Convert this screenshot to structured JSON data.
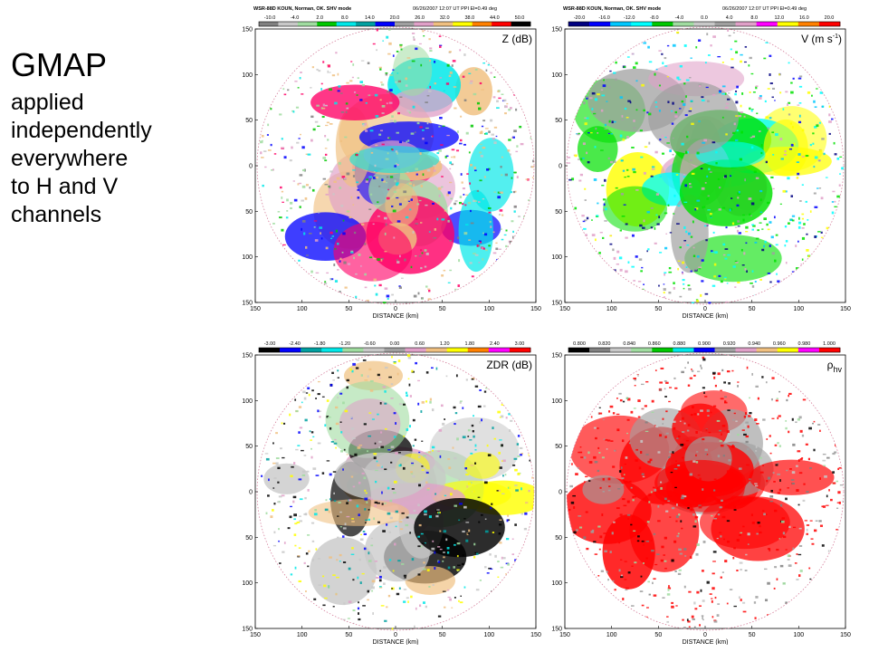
{
  "slide": {
    "title": "GMAP",
    "lines": [
      "applied",
      "independently",
      "everywhere",
      "to H and V",
      "channels"
    ]
  },
  "panels": [
    {
      "header_left": "WSR-88D  KOUN, Norman, OK.  SHV mode",
      "header_right": "06/26/2007  12:07 UT  PPI   El=0.49 deg",
      "colorbar_labels": [
        "-10.0",
        "-4.0",
        "2.0",
        "8.0",
        "14.0",
        "20.0",
        "26.0",
        "32.0",
        "38.0",
        "44.0",
        "50.0"
      ],
      "colorbar_colors": [
        "#808080",
        "#c8c8c8",
        "#a0dca0",
        "#00c800",
        "#00e8e8",
        "#00a0a0",
        "#0000ff",
        "#a0a0a0",
        "#e0a0c8",
        "#f0c080",
        "#ffff00",
        "#ff8000",
        "#ff0000",
        "#000000"
      ],
      "field_label": "Z  (dB)",
      "xlabel": "DISTANCE (km)",
      "x_ticks": [
        "150",
        "100",
        "50",
        "0",
        "50",
        "100",
        "150"
      ],
      "y_ticks": [
        "150",
        "100",
        "50",
        "0",
        "50",
        "100",
        "150"
      ],
      "palette": [
        "#f0c080",
        "#e0a0c8",
        "#0000ff",
        "#ff0066",
        "#00e8e8",
        "#a0dca0",
        "#f0c080"
      ]
    },
    {
      "header_left": "WSR-88D  KOUN, Norman, OK.  SHV mode",
      "header_right": "06/26/2007  12:07 UT  PPI   El=0.49 deg",
      "colorbar_labels": [
        "-20.0",
        "-16.0",
        "-12.0",
        "-8.0",
        "-4.0",
        "0.0",
        "4.0",
        "8.0",
        "12.0",
        "16.0",
        "20.0"
      ],
      "colorbar_colors": [
        "#000080",
        "#0000ff",
        "#00c8ff",
        "#00ffff",
        "#00c800",
        "#a0dca0",
        "#c8c8c8",
        "#a0a0a0",
        "#e0a0c8",
        "#ff00ff",
        "#ffff00",
        "#ff8000",
        "#ff0000"
      ],
      "field_label": "V (m s",
      "field_label_sup": "-1",
      "field_label_end": ")",
      "xlabel": "DISTANCE (km)",
      "x_ticks": [
        "150",
        "100",
        "50",
        "0",
        "50",
        "100",
        "150"
      ],
      "y_ticks": [
        "150",
        "100",
        "50",
        "0",
        "50",
        "100",
        "150"
      ],
      "palette": [
        "#e0a0c8",
        "#ffff00",
        "#00e000",
        "#00ffff",
        "#a0a0a0",
        "#e0a0c8",
        "#00e000"
      ]
    },
    {
      "header_left": "",
      "header_right": "",
      "colorbar_labels": [
        "-3.00",
        "-2.40",
        "-1.80",
        "-1.20",
        "-0.60",
        "0.00",
        "0.60",
        "1.20",
        "1.80",
        "2.40",
        "3.00"
      ],
      "colorbar_colors": [
        "#000000",
        "#0000ff",
        "#00a0a0",
        "#00e8e8",
        "#a0dca0",
        "#c8c8c8",
        "#a0a0a0",
        "#e0a0c8",
        "#f0c080",
        "#ffff00",
        "#ff8000",
        "#ff00ff",
        "#ff0000"
      ],
      "field_label": "ZDR (dB)",
      "xlabel": "DISTANCE (km)",
      "x_ticks": [
        "150",
        "100",
        "50",
        "0",
        "50",
        "100",
        "150"
      ],
      "y_ticks": [
        "150",
        "100",
        "50",
        "0",
        "50",
        "100",
        "150"
      ],
      "palette": [
        "#c8c8c8",
        "#f0c080",
        "#ffff00",
        "#e0a0c8",
        "#000000",
        "#a0dca0",
        "#c8c8c8"
      ]
    },
    {
      "header_left": "",
      "header_right": "",
      "colorbar_labels": [
        "0.800",
        "0.820",
        "0.840",
        "0.860",
        "0.880",
        "0.900",
        "0.920",
        "0.940",
        "0.960",
        "0.980",
        "1.000"
      ],
      "colorbar_colors": [
        "#000000",
        "#808080",
        "#c8c8c8",
        "#a0dca0",
        "#00c800",
        "#00e8e8",
        "#0000ff",
        "#a0a0a0",
        "#e0a0c8",
        "#f0c080",
        "#ffff00",
        "#ff00ff",
        "#ff0000"
      ],
      "field_label": "ρ",
      "field_label_sub": "hv",
      "xlabel": "DISTANCE (km)",
      "x_ticks": [
        "150",
        "100",
        "50",
        "0",
        "50",
        "100",
        "150"
      ],
      "y_ticks": [
        "150",
        "100",
        "50",
        "0",
        "50",
        "100",
        "150"
      ],
      "palette": [
        "#ff0000",
        "#ff0000",
        "#a0a0a0",
        "#ff0000",
        "#ff0000",
        "#a0a0a0",
        "#ff0000"
      ]
    }
  ]
}
